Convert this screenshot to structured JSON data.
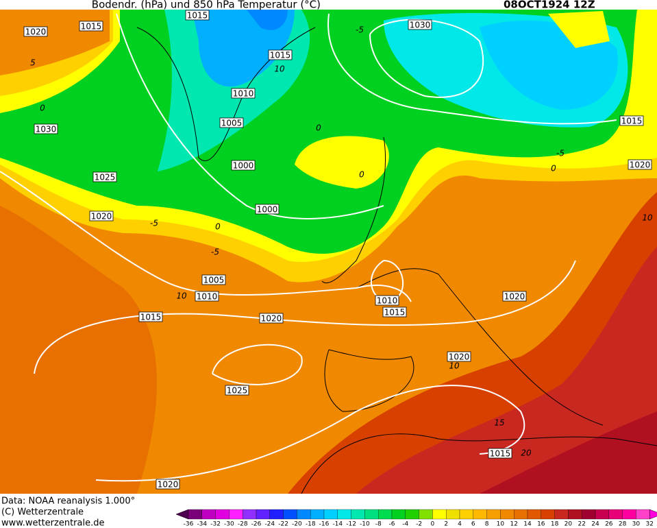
{
  "header": {
    "title": "Bodendr. (hPa) und 850 hPa Temperatur (°C)",
    "date": "08OCT1924 12Z"
  },
  "footer": [
    "Data: NOAA reanalysis 1.000°",
    "(C) Wetterzentrale",
    "www.wetterzentrale.de"
  ],
  "isobar_labels": [
    1015,
    1020,
    1015,
    1030,
    1015,
    1010,
    1005,
    1030,
    1015,
    1000,
    1020,
    1025,
    1000,
    1020,
    1005,
    1010,
    1010,
    1015,
    1020,
    1015,
    1020,
    1020,
    1025,
    1015,
    1020
  ],
  "temperature_labels": [
    5,
    0,
    -5,
    10,
    0,
    0,
    -5,
    0,
    -5,
    0,
    -5,
    10,
    10,
    10,
    15,
    20
  ],
  "colorbar": {
    "labels": [
      -36,
      -34,
      -32,
      -30,
      -28,
      -26,
      -24,
      -22,
      -20,
      -18,
      -16,
      -14,
      -12,
      -10,
      -8,
      -6,
      -4,
      -2,
      0,
      2,
      4,
      6,
      8,
      10,
      12,
      14,
      16,
      18,
      20,
      22,
      24,
      26,
      28,
      30,
      32
    ],
    "colors": [
      "#7a007a",
      "#c000c0",
      "#e000e0",
      "#ff20ff",
      "#9030ff",
      "#6020ff",
      "#2020ff",
      "#0050ff",
      "#0088ff",
      "#00b0ff",
      "#00d0ff",
      "#00e8e8",
      "#00e8b0",
      "#00e080",
      "#00dc50",
      "#00d020",
      "#20d000",
      "#80e000",
      "#ffff00",
      "#f0e000",
      "#ffd000",
      "#ffb800",
      "#f5a000",
      "#f08800",
      "#e87000",
      "#e05800",
      "#d84000",
      "#c82820",
      "#b01020",
      "#a00030",
      "#c80050",
      "#e80078",
      "#ff00a0",
      "#ff40c8"
    ],
    "under_color": "#500050",
    "over_color": "#ff00dc"
  }
}
